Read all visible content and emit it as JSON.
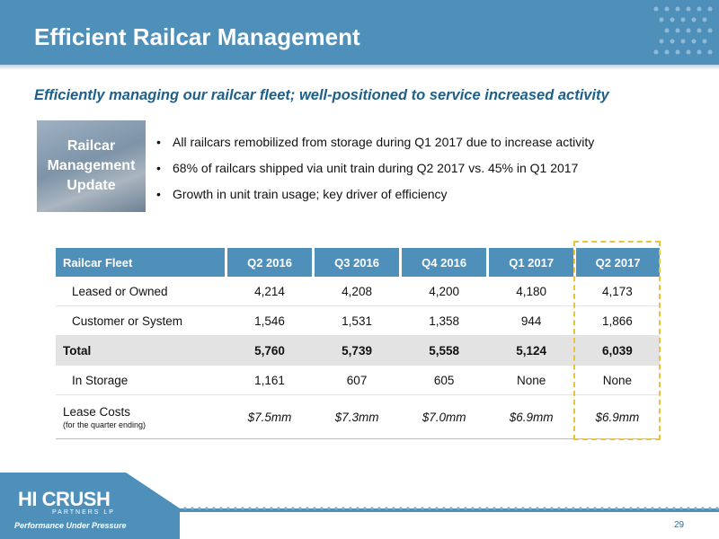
{
  "title": "Efficient Railcar Management",
  "subtitle": "Efficiently managing our railcar fleet; well-positioned to service increased activity",
  "badge": {
    "lines": [
      "Railcar",
      "Management",
      "Update"
    ]
  },
  "bullets": [
    "All railcars remobilized from storage during Q1 2017 due to increase activity",
    "68% of railcars shipped via unit train during Q2 2017 vs. 45% in Q1 2017",
    "Growth in unit train usage; key driver of efficiency"
  ],
  "table": {
    "headers": [
      "Railcar Fleet",
      "Q2 2016",
      "Q3 2016",
      "Q4 2016",
      "Q1 2017",
      "Q2 2017"
    ],
    "rows": [
      {
        "label": "Leased or Owned",
        "values": [
          "4,214",
          "4,208",
          "4,200",
          "4,180",
          "4,173"
        ]
      },
      {
        "label": "Customer or System",
        "values": [
          "1,546",
          "1,531",
          "1,358",
          "944",
          "1,866"
        ]
      },
      {
        "label": "Total",
        "values": [
          "5,760",
          "5,739",
          "5,558",
          "5,124",
          "6,039"
        ]
      },
      {
        "label": "In Storage",
        "values": [
          "1,161",
          "607",
          "605",
          "None",
          "None"
        ]
      },
      {
        "label": "Lease Costs",
        "sublabel": "(for the quarter ending)",
        "values": [
          "$7.5mm",
          "$7.3mm",
          "$7.0mm",
          "$6.9mm",
          "$6.9mm"
        ]
      }
    ]
  },
  "footer": {
    "logo_main": "HI CRUSH",
    "logo_sub": "PARTNERS LP",
    "tagline": "Performance Under Pressure",
    "page_number": "29"
  },
  "colors": {
    "header": "#4f90bb",
    "subtitle": "#1f5f8a",
    "highlight": "#e8c43a",
    "total_row": "#e3e3e3"
  }
}
